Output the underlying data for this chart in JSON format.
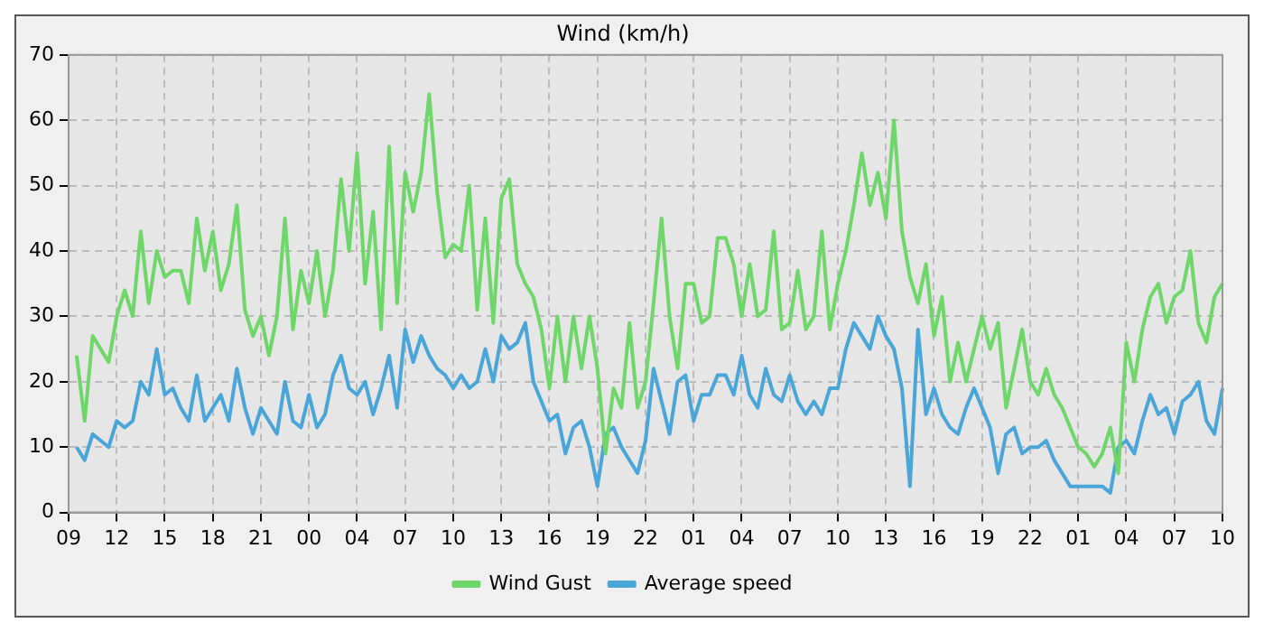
{
  "chart_data": {
    "type": "line",
    "title": "Wind (km/h)",
    "categories": [
      "09",
      null,
      null,
      null,
      null,
      null,
      "12",
      null,
      null,
      null,
      null,
      null,
      "15",
      null,
      null,
      null,
      null,
      null,
      "18",
      null,
      null,
      null,
      null,
      null,
      "21",
      null,
      null,
      null,
      null,
      null,
      "00",
      null,
      null,
      null,
      null,
      null,
      "04",
      null,
      null,
      null,
      null,
      null,
      "07",
      null,
      null,
      null,
      null,
      null,
      "10",
      null,
      null,
      null,
      null,
      null,
      "13",
      null,
      null,
      null,
      null,
      null,
      "16",
      null,
      null,
      null,
      null,
      null,
      "19",
      null,
      null,
      null,
      null,
      null,
      "22",
      null,
      null,
      null,
      null,
      null,
      "01",
      null,
      null,
      null,
      null,
      null,
      "04",
      null,
      null,
      null,
      null,
      null,
      "07",
      null,
      null,
      null,
      null,
      null,
      "10",
      null,
      null,
      null,
      null,
      null,
      "13",
      null,
      null,
      null,
      null,
      null,
      "16",
      null,
      null,
      null,
      null,
      null,
      "19",
      null,
      null,
      null,
      null,
      null,
      "22",
      null,
      null,
      null,
      null,
      null,
      "01",
      null,
      null,
      null,
      null,
      null,
      "04",
      null,
      null,
      null,
      null,
      null,
      "07",
      null,
      null,
      null,
      null,
      null,
      "10"
    ],
    "ylim": [
      0,
      70
    ],
    "yticks": [
      0,
      10,
      20,
      30,
      40,
      50,
      60,
      70
    ],
    "grid": true,
    "legend": "bottom",
    "marker": "none",
    "line_style": "solid",
    "series": [
      {
        "name": "Wind Gust",
        "color": "#6fd66a",
        "values": [
          null,
          24,
          14,
          27,
          25,
          23,
          30,
          34,
          30,
          43,
          32,
          40,
          36,
          37,
          37,
          32,
          45,
          37,
          43,
          34,
          38,
          47,
          31,
          27,
          30,
          24,
          30,
          45,
          28,
          37,
          32,
          40,
          30,
          37,
          51,
          40,
          55,
          35,
          46,
          28,
          56,
          32,
          52,
          46,
          52,
          64,
          49,
          39,
          41,
          40,
          50,
          31,
          45,
          29,
          48,
          51,
          38,
          35,
          33,
          28,
          19,
          30,
          20,
          30,
          22,
          30,
          22,
          9,
          19,
          16,
          29,
          16,
          20,
          32,
          45,
          30,
          22,
          35,
          35,
          29,
          30,
          42,
          42,
          38,
          30,
          38,
          30,
          31,
          43,
          28,
          29,
          37,
          28,
          30,
          43,
          28,
          35,
          40,
          47,
          55,
          47,
          52,
          45,
          60,
          43,
          36,
          32,
          38,
          27,
          33,
          20,
          26,
          20,
          25,
          30,
          25,
          29,
          16,
          22,
          28,
          20,
          18,
          22,
          18,
          16,
          13,
          10,
          9,
          7,
          9,
          13,
          6,
          26,
          20,
          28,
          33,
          35,
          29,
          33,
          34,
          40,
          29,
          26,
          33,
          35
        ]
      },
      {
        "name": "Average speed",
        "color": "#4aa6d9",
        "values": [
          null,
          10,
          8,
          12,
          11,
          10,
          14,
          13,
          14,
          20,
          18,
          25,
          18,
          19,
          16,
          14,
          21,
          14,
          16,
          18,
          14,
          22,
          16,
          12,
          16,
          14,
          12,
          20,
          14,
          13,
          18,
          13,
          15,
          21,
          24,
          19,
          18,
          20,
          15,
          19,
          24,
          16,
          28,
          23,
          27,
          24,
          22,
          21,
          19,
          21,
          19,
          20,
          25,
          20,
          27,
          25,
          26,
          29,
          20,
          17,
          14,
          15,
          9,
          13,
          14,
          10,
          4,
          12,
          13,
          10,
          8,
          6,
          11,
          22,
          17,
          12,
          20,
          21,
          14,
          18,
          18,
          21,
          21,
          18,
          24,
          18,
          16,
          22,
          18,
          17,
          21,
          17,
          15,
          17,
          15,
          19,
          19,
          25,
          29,
          27,
          25,
          30,
          27,
          25,
          19,
          4,
          28,
          15,
          19,
          15,
          13,
          12,
          16,
          19,
          16,
          13,
          6,
          12,
          13,
          9,
          10,
          10,
          11,
          8,
          6,
          4,
          4,
          4,
          4,
          4,
          3,
          10,
          11,
          9,
          14,
          18,
          15,
          16,
          12,
          17,
          18,
          20,
          14,
          12,
          19
        ]
      }
    ]
  }
}
